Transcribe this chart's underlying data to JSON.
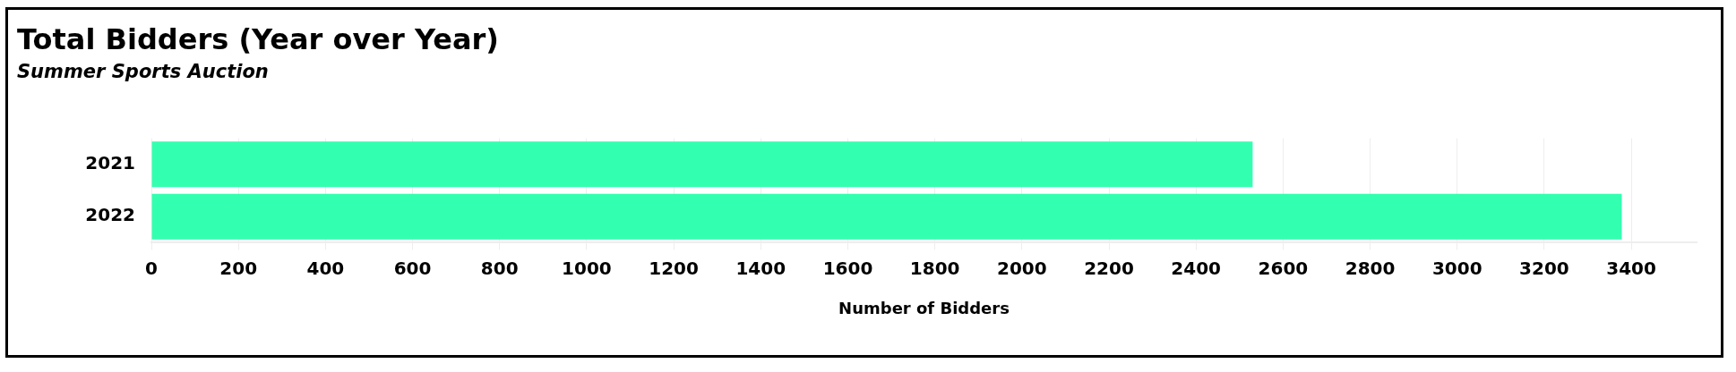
{
  "chart_data": {
    "type": "bar",
    "orientation": "horizontal",
    "title": "Total Bidders (Year over Year)",
    "subtitle": "Summer Sports Auction",
    "xlabel": "Number of Bidders",
    "categories": [
      "2021",
      "2022"
    ],
    "values": [
      2530,
      3378
    ],
    "color": "#33ffb0",
    "xlim": [
      0,
      3550
    ],
    "xticks": [
      0,
      200,
      400,
      600,
      800,
      1000,
      1200,
      1400,
      1600,
      1800,
      2000,
      2200,
      2400,
      2600,
      2800,
      3000,
      3200,
      3400
    ],
    "grid": "x",
    "legend": false
  }
}
